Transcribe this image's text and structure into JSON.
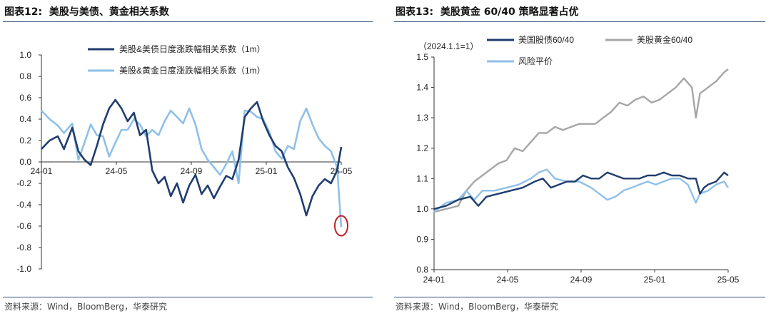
{
  "charts": [
    {
      "title": "图表12:  美股与美债、黄金相关系数",
      "source": "资料来源：Wind，BloomBerg，华泰研究"
    },
    {
      "title": "图表13:  美股黄金 60/40 策略显著占优",
      "source": "资料来源：Wind，BloomBerg，华泰研究"
    }
  ],
  "chart_data": [
    {
      "type": "line",
      "title": "图表12:  美股与美债、黄金相关系数",
      "x_ticks": [
        "24-01",
        "24-05",
        "24-09",
        "25-01",
        "25-05"
      ],
      "y_ticks": [
        "1.0",
        "0.8",
        "0.6",
        "0.4",
        "0.2",
        "0.0",
        "-0.2",
        "-0.4",
        "-0.6",
        "-0.8",
        "-1.0"
      ],
      "ylim": [
        -1.0,
        1.0
      ],
      "legend_position": "top-center",
      "annotation": "red circle around final value of gold correlation (≈ -0.61)",
      "series": [
        {
          "name": "美股&美债日度涨跌幅相关系数（1m）",
          "color": "#1f3d6e",
          "points": [
            [
              0,
              0.12
            ],
            [
              4,
              0.2
            ],
            [
              8,
              0.24
            ],
            [
              11,
              0.12
            ],
            [
              15,
              0.32
            ],
            [
              18,
              0.1
            ],
            [
              21,
              0.02
            ],
            [
              24,
              -0.03
            ],
            [
              27,
              0.15
            ],
            [
              30,
              0.35
            ],
            [
              33,
              0.5
            ],
            [
              36,
              0.58
            ],
            [
              39,
              0.5
            ],
            [
              42,
              0.38
            ],
            [
              45,
              0.46
            ],
            [
              48,
              0.25
            ],
            [
              51,
              0.3
            ],
            [
              54,
              -0.08
            ],
            [
              57,
              -0.2
            ],
            [
              60,
              -0.14
            ],
            [
              63,
              -0.32
            ],
            [
              66,
              -0.2
            ],
            [
              69,
              -0.38
            ],
            [
              72,
              -0.22
            ],
            [
              75,
              -0.12
            ],
            [
              78,
              -0.3
            ],
            [
              81,
              -0.22
            ],
            [
              84,
              -0.34
            ],
            [
              87,
              -0.23
            ],
            [
              90,
              -0.13
            ],
            [
              93,
              -0.16
            ],
            [
              96,
              0.02
            ],
            [
              99,
              0.42
            ],
            [
              102,
              0.5
            ],
            [
              105,
              0.56
            ],
            [
              108,
              0.38
            ],
            [
              111,
              0.25
            ],
            [
              114,
              0.15
            ],
            [
              117,
              0.1
            ],
            [
              120,
              -0.05
            ],
            [
              123,
              -0.15
            ],
            [
              126,
              -0.3
            ],
            [
              129,
              -0.5
            ],
            [
              132,
              -0.32
            ],
            [
              135,
              -0.22
            ],
            [
              138,
              -0.16
            ],
            [
              141,
              -0.2
            ],
            [
              144,
              -0.08
            ],
            [
              146,
              0.14
            ]
          ]
        },
        {
          "name": "美股&黄金日度涨跌幅相关系数（1m）",
          "color": "#8fc0e8",
          "points": [
            [
              0,
              0.48
            ],
            [
              4,
              0.4
            ],
            [
              8,
              0.34
            ],
            [
              11,
              0.27
            ],
            [
              15,
              0.36
            ],
            [
              18,
              0.02
            ],
            [
              21,
              0.18
            ],
            [
              24,
              0.35
            ],
            [
              27,
              0.25
            ],
            [
              30,
              0.24
            ],
            [
              33,
              0.05
            ],
            [
              36,
              0.18
            ],
            [
              39,
              0.3
            ],
            [
              42,
              0.3
            ],
            [
              45,
              0.4
            ],
            [
              48,
              0.35
            ],
            [
              51,
              0.24
            ],
            [
              54,
              0.3
            ],
            [
              57,
              0.25
            ],
            [
              60,
              0.38
            ],
            [
              63,
              0.48
            ],
            [
              66,
              0.42
            ],
            [
              69,
              0.36
            ],
            [
              72,
              0.5
            ],
            [
              75,
              0.35
            ],
            [
              78,
              0.12
            ],
            [
              81,
              0.02
            ],
            [
              84,
              -0.05
            ],
            [
              87,
              -0.12
            ],
            [
              90,
              -0.02
            ],
            [
              93,
              0.1
            ],
            [
              96,
              -0.2
            ],
            [
              99,
              0.48
            ],
            [
              102,
              0.47
            ],
            [
              105,
              0.42
            ],
            [
              108,
              0.4
            ],
            [
              111,
              0.28
            ],
            [
              114,
              0.1
            ],
            [
              117,
              0.03
            ],
            [
              120,
              0.15
            ],
            [
              123,
              0.12
            ],
            [
              126,
              0.38
            ],
            [
              129,
              0.5
            ],
            [
              132,
              0.35
            ],
            [
              135,
              0.22
            ],
            [
              138,
              0.15
            ],
            [
              141,
              0.1
            ],
            [
              144,
              -0.05
            ],
            [
              146,
              -0.61
            ]
          ]
        }
      ]
    },
    {
      "type": "line",
      "title": "图表13:  美股黄金 60/40 策略显著占优",
      "subtitle": "（2024.1.1=1）",
      "x_ticks": [
        "24-01",
        "24-05",
        "24-09",
        "25-01",
        "25-05"
      ],
      "y_ticks": [
        "1.5",
        "1.4",
        "1.3",
        "1.2",
        "1.1",
        "1.0",
        "0.9",
        "0.8"
      ],
      "ylim": [
        0.8,
        1.5
      ],
      "shaded_region": {
        "from": "25-01",
        "to": "end",
        "color": "#fbe9e9"
      },
      "legend_position": "top",
      "series": [
        {
          "name": "美国股债60/40",
          "color": "#1f3d6e",
          "points": [
            [
              0,
              1.0
            ],
            [
              6,
              1.01
            ],
            [
              12,
              1.03
            ],
            [
              18,
              1.04
            ],
            [
              22,
              1.01
            ],
            [
              26,
              1.04
            ],
            [
              32,
              1.05
            ],
            [
              38,
              1.06
            ],
            [
              44,
              1.07
            ],
            [
              50,
              1.09
            ],
            [
              54,
              1.1
            ],
            [
              58,
              1.07
            ],
            [
              62,
              1.08
            ],
            [
              66,
              1.09
            ],
            [
              70,
              1.09
            ],
            [
              74,
              1.11
            ],
            [
              78,
              1.1
            ],
            [
              82,
              1.1
            ],
            [
              86,
              1.12
            ],
            [
              90,
              1.11
            ],
            [
              94,
              1.1
            ],
            [
              98,
              1.1
            ],
            [
              102,
              1.1
            ],
            [
              106,
              1.11
            ],
            [
              110,
              1.11
            ],
            [
              114,
              1.12
            ],
            [
              118,
              1.11
            ],
            [
              122,
              1.11
            ],
            [
              126,
              1.1
            ],
            [
              130,
              1.1
            ],
            [
              132,
              1.05
            ],
            [
              134,
              1.07
            ],
            [
              136,
              1.08
            ],
            [
              140,
              1.09
            ],
            [
              144,
              1.12
            ],
            [
              146,
              1.11
            ]
          ]
        },
        {
          "name": "美股黄金60/40",
          "color": "#a6a6a6",
          "points": [
            [
              0,
              0.99
            ],
            [
              6,
              1.0
            ],
            [
              12,
              1.01
            ],
            [
              16,
              1.06
            ],
            [
              20,
              1.09
            ],
            [
              24,
              1.11
            ],
            [
              28,
              1.13
            ],
            [
              32,
              1.15
            ],
            [
              36,
              1.16
            ],
            [
              40,
              1.2
            ],
            [
              44,
              1.19
            ],
            [
              48,
              1.22
            ],
            [
              52,
              1.25
            ],
            [
              56,
              1.25
            ],
            [
              60,
              1.27
            ],
            [
              64,
              1.26
            ],
            [
              68,
              1.27
            ],
            [
              72,
              1.28
            ],
            [
              76,
              1.28
            ],
            [
              80,
              1.28
            ],
            [
              84,
              1.3
            ],
            [
              88,
              1.32
            ],
            [
              92,
              1.35
            ],
            [
              96,
              1.34
            ],
            [
              100,
              1.36
            ],
            [
              104,
              1.37
            ],
            [
              108,
              1.35
            ],
            [
              112,
              1.36
            ],
            [
              116,
              1.38
            ],
            [
              120,
              1.4
            ],
            [
              124,
              1.43
            ],
            [
              128,
              1.4
            ],
            [
              130,
              1.3
            ],
            [
              132,
              1.38
            ],
            [
              136,
              1.4
            ],
            [
              140,
              1.42
            ],
            [
              144,
              1.45
            ],
            [
              146,
              1.46
            ]
          ]
        },
        {
          "name": "风险平价",
          "color": "#8fc0e8",
          "points": [
            [
              0,
              0.99
            ],
            [
              6,
              1.02
            ],
            [
              12,
              1.03
            ],
            [
              16,
              1.06
            ],
            [
              20,
              1.03
            ],
            [
              24,
              1.06
            ],
            [
              30,
              1.06
            ],
            [
              36,
              1.07
            ],
            [
              42,
              1.08
            ],
            [
              48,
              1.1
            ],
            [
              52,
              1.12
            ],
            [
              56,
              1.13
            ],
            [
              60,
              1.1
            ],
            [
              66,
              1.09
            ],
            [
              72,
              1.09
            ],
            [
              78,
              1.07
            ],
            [
              82,
              1.05
            ],
            [
              86,
              1.03
            ],
            [
              90,
              1.04
            ],
            [
              94,
              1.06
            ],
            [
              98,
              1.07
            ],
            [
              102,
              1.08
            ],
            [
              106,
              1.09
            ],
            [
              110,
              1.08
            ],
            [
              114,
              1.09
            ],
            [
              118,
              1.1
            ],
            [
              122,
              1.1
            ],
            [
              126,
              1.08
            ],
            [
              130,
              1.02
            ],
            [
              132,
              1.05
            ],
            [
              136,
              1.06
            ],
            [
              140,
              1.08
            ],
            [
              144,
              1.09
            ],
            [
              146,
              1.07
            ]
          ]
        }
      ]
    }
  ]
}
